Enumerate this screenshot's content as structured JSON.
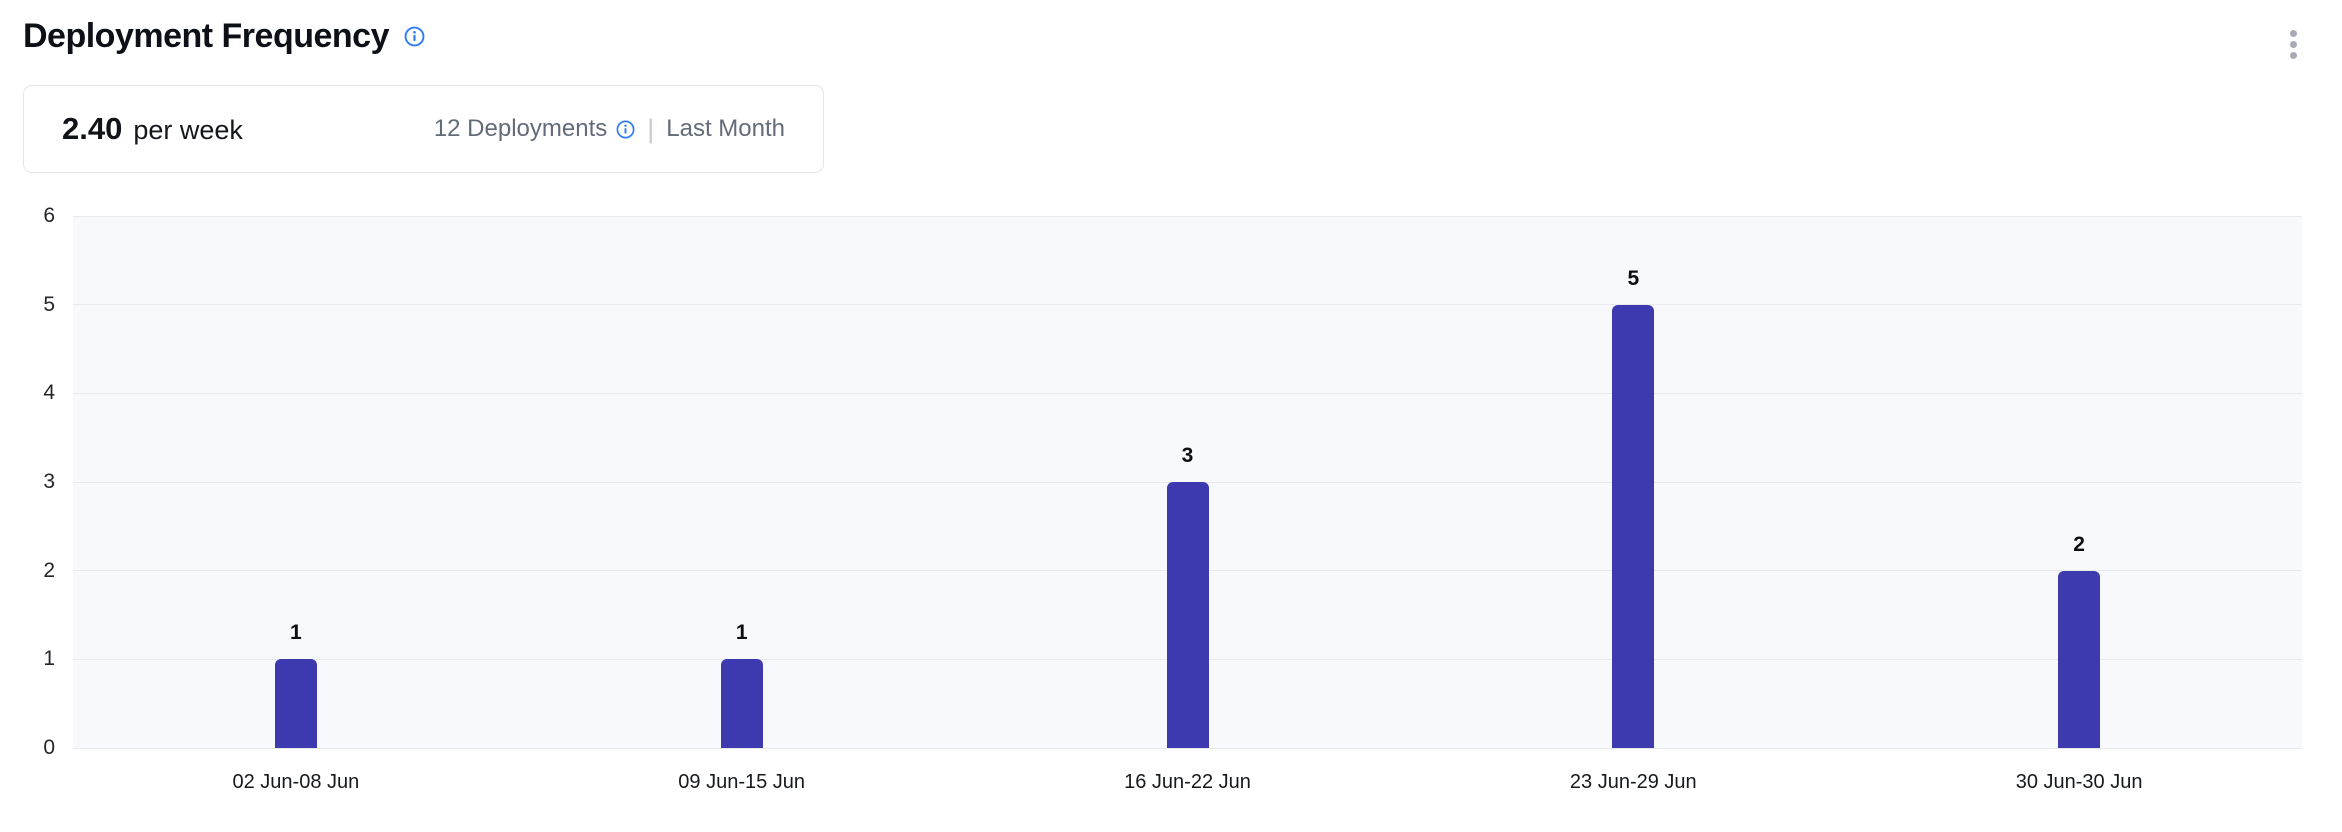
{
  "header": {
    "title": "Deployment Frequency"
  },
  "summary": {
    "value": "2.40",
    "unit": "per week",
    "deployments_label": "12 Deployments",
    "separator": "|",
    "period_label": "Last Month"
  },
  "icons": {
    "title_info": "info-icon",
    "deployments_info": "info-icon",
    "menu": "kebab-menu-icon"
  },
  "colors": {
    "bar": "#3d3ab0",
    "accent_blue": "#2f7df2",
    "plot_background": "#f8f9fd",
    "grid_line": "#e7e9ee",
    "muted_text": "#646b78"
  },
  "chart_data": {
    "type": "bar",
    "title": "Deployment Frequency",
    "categories": [
      "02 Jun-08 Jun",
      "09 Jun-15 Jun",
      "16 Jun-22 Jun",
      "23 Jun-29 Jun",
      "30 Jun-30 Jun"
    ],
    "values": [
      1,
      1,
      3,
      5,
      2
    ],
    "xlabel": "",
    "ylabel": "",
    "ylim": [
      0,
      6
    ],
    "y_ticks": [
      0,
      1,
      2,
      3,
      4,
      5,
      6
    ],
    "grid": true,
    "legend": false,
    "value_labels": true,
    "bar_color": "#3d3ab0"
  }
}
